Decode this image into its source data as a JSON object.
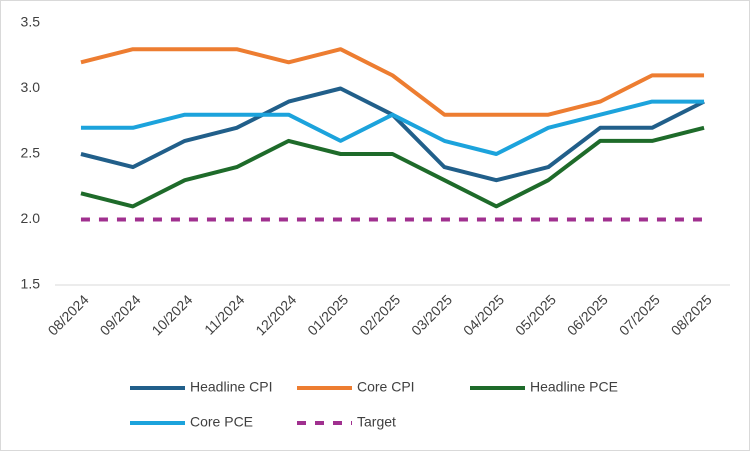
{
  "chart_data": {
    "type": "line",
    "categories": [
      "08/2024",
      "09/2024",
      "10/2024",
      "11/2024",
      "12/2024",
      "01/2025",
      "02/2025",
      "03/2025",
      "04/2025",
      "05/2025",
      "06/2025",
      "07/2025",
      "08/2025"
    ],
    "series": [
      {
        "name": "Headline CPI",
        "color": "#215f8a",
        "values": [
          2.5,
          2.4,
          2.6,
          2.7,
          2.9,
          3.0,
          2.8,
          2.4,
          2.3,
          2.4,
          2.7,
          2.7,
          2.9
        ]
      },
      {
        "name": "Core CPI",
        "color": "#ed7d31",
        "values": [
          3.2,
          3.3,
          3.3,
          3.3,
          3.2,
          3.3,
          3.1,
          2.8,
          2.8,
          2.8,
          2.9,
          3.1,
          3.1
        ]
      },
      {
        "name": "Headline PCE",
        "color": "#1e6b2a",
        "values": [
          2.2,
          2.1,
          2.3,
          2.4,
          2.6,
          2.5,
          2.5,
          2.3,
          2.1,
          2.3,
          2.6,
          2.6,
          2.7
        ]
      },
      {
        "name": "Core PCE",
        "color": "#1ca3dc",
        "values": [
          2.7,
          2.7,
          2.8,
          2.8,
          2.8,
          2.6,
          2.8,
          2.6,
          2.5,
          2.7,
          2.8,
          2.9,
          2.9
        ]
      },
      {
        "name": "Target",
        "color": "#a0308f",
        "dashed": true,
        "values": [
          2,
          2,
          2,
          2,
          2,
          2,
          2,
          2,
          2,
          2,
          2,
          2,
          2
        ]
      }
    ],
    "ylim": [
      1.5,
      3.5
    ],
    "yticks": [
      1.5,
      {
        "value": 2,
        "label": "2.0"
      },
      2.5,
      {
        "value": 3,
        "label": "3.0"
      },
      3.5
    ],
    "grid": false,
    "legend": "bottom"
  }
}
